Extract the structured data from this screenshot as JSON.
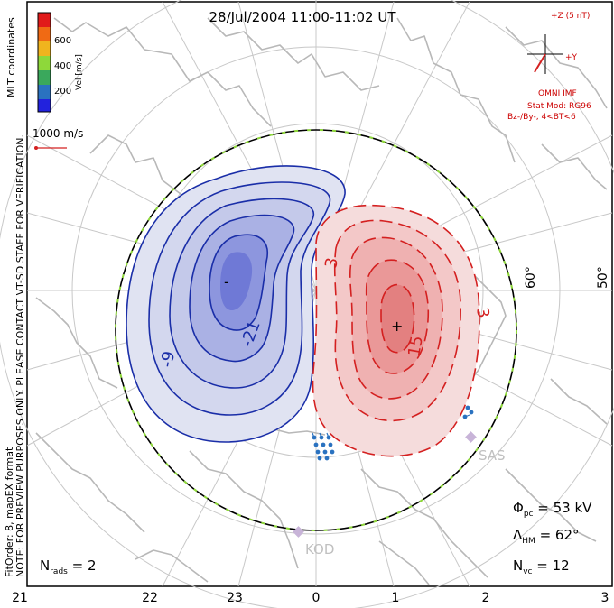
{
  "title": "28/Jul/2004 11:00-11:02 UT",
  "colorbar": {
    "label": "Vel [m/s]",
    "ticks": [
      "600",
      "400",
      "200"
    ],
    "colors": [
      "#e11a1a",
      "#f06a14",
      "#f0b41e",
      "#8ed83a",
      "#3aa85c",
      "#2a72c0",
      "#2222dd"
    ]
  },
  "coords_label": "MLT coordinates",
  "vector_scale_label": "1000 m/s",
  "imf": {
    "z_label": "+Z (5 nT)",
    "y_label": "+Y",
    "source": "OMNI IMF",
    "stat_mod": "Stat Mod: RG96",
    "condition": "Bz-/By-, 4<BT<6"
  },
  "side_note": "NOTE: FOR PREVIEW PURPOSES ONLY. PLEASE CONTACT VT-SD STAFF FOR VERIFICATION.",
  "fit_note": "FitOrder: 8, mapEX format",
  "latitude_labels": [
    "60°",
    "50°"
  ],
  "mlt_labels": [
    "21",
    "22",
    "23",
    "0",
    "1",
    "2",
    "3"
  ],
  "contour_labels": [
    "-9",
    "-21",
    "3",
    "3",
    "15",
    "-",
    "+"
  ],
  "radars": [
    "SAS",
    "KOD"
  ],
  "stats": {
    "phi_pc": "Φ",
    "phi_pc_sub": "pc",
    "phi_pc_value": " = 53 kV",
    "lambda_hm": "Λ",
    "lambda_hm_sub": "HM",
    "lambda_hm_value": " = 62°",
    "n_vc": "N",
    "n_vc_sub": "vc",
    "n_vc_value": " = 12",
    "n_rads": "N",
    "n_rads_sub": "rads",
    "n_rads_value": " = 2"
  }
}
